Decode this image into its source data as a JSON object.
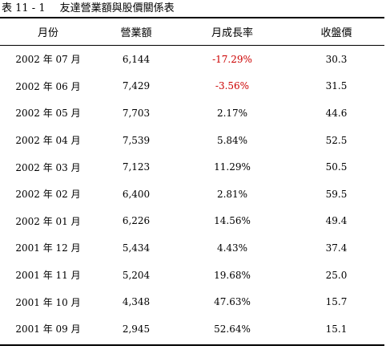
{
  "caption": {
    "label": "表 11 - 1",
    "title": "友達營業額與股價關係表"
  },
  "table": {
    "headers": [
      "月份",
      "營業額",
      "月成長率",
      "收盤價"
    ],
    "rows": [
      {
        "month": "2002 年 07 月",
        "revenue": "6,144",
        "growth": "-17.29%",
        "close": "30.3"
      },
      {
        "month": "2002 年 06 月",
        "revenue": "7,429",
        "growth": "-3.56%",
        "close": "31.5"
      },
      {
        "month": "2002 年 05 月",
        "revenue": "7,703",
        "growth": "2.17%",
        "close": "44.6"
      },
      {
        "month": "2002 年 04 月",
        "revenue": "7,539",
        "growth": "5.84%",
        "close": "52.5"
      },
      {
        "month": "2002 年 03 月",
        "revenue": "7,123",
        "growth": "11.29%",
        "close": "50.5"
      },
      {
        "month": "2002 年 02 月",
        "revenue": "6,400",
        "growth": "2.81%",
        "close": "59.5"
      },
      {
        "month": "2002 年 01 月",
        "revenue": "6,226",
        "growth": "14.56%",
        "close": "49.4"
      },
      {
        "month": "2001 年 12 月",
        "revenue": "5,434",
        "growth": "4.43%",
        "close": "37.4"
      },
      {
        "month": "2001 年 11 月",
        "revenue": "5,204",
        "growth": "19.68%",
        "close": "25.0"
      },
      {
        "month": "2001 年 10 月",
        "revenue": "4,348",
        "growth": "47.63%",
        "close": "15.7"
      },
      {
        "month": "2001 年 09 月",
        "revenue": "2,945",
        "growth": "52.64%",
        "close": "15.1"
      }
    ]
  },
  "colors": {
    "negative": "#cc0000",
    "text": "#000000"
  }
}
